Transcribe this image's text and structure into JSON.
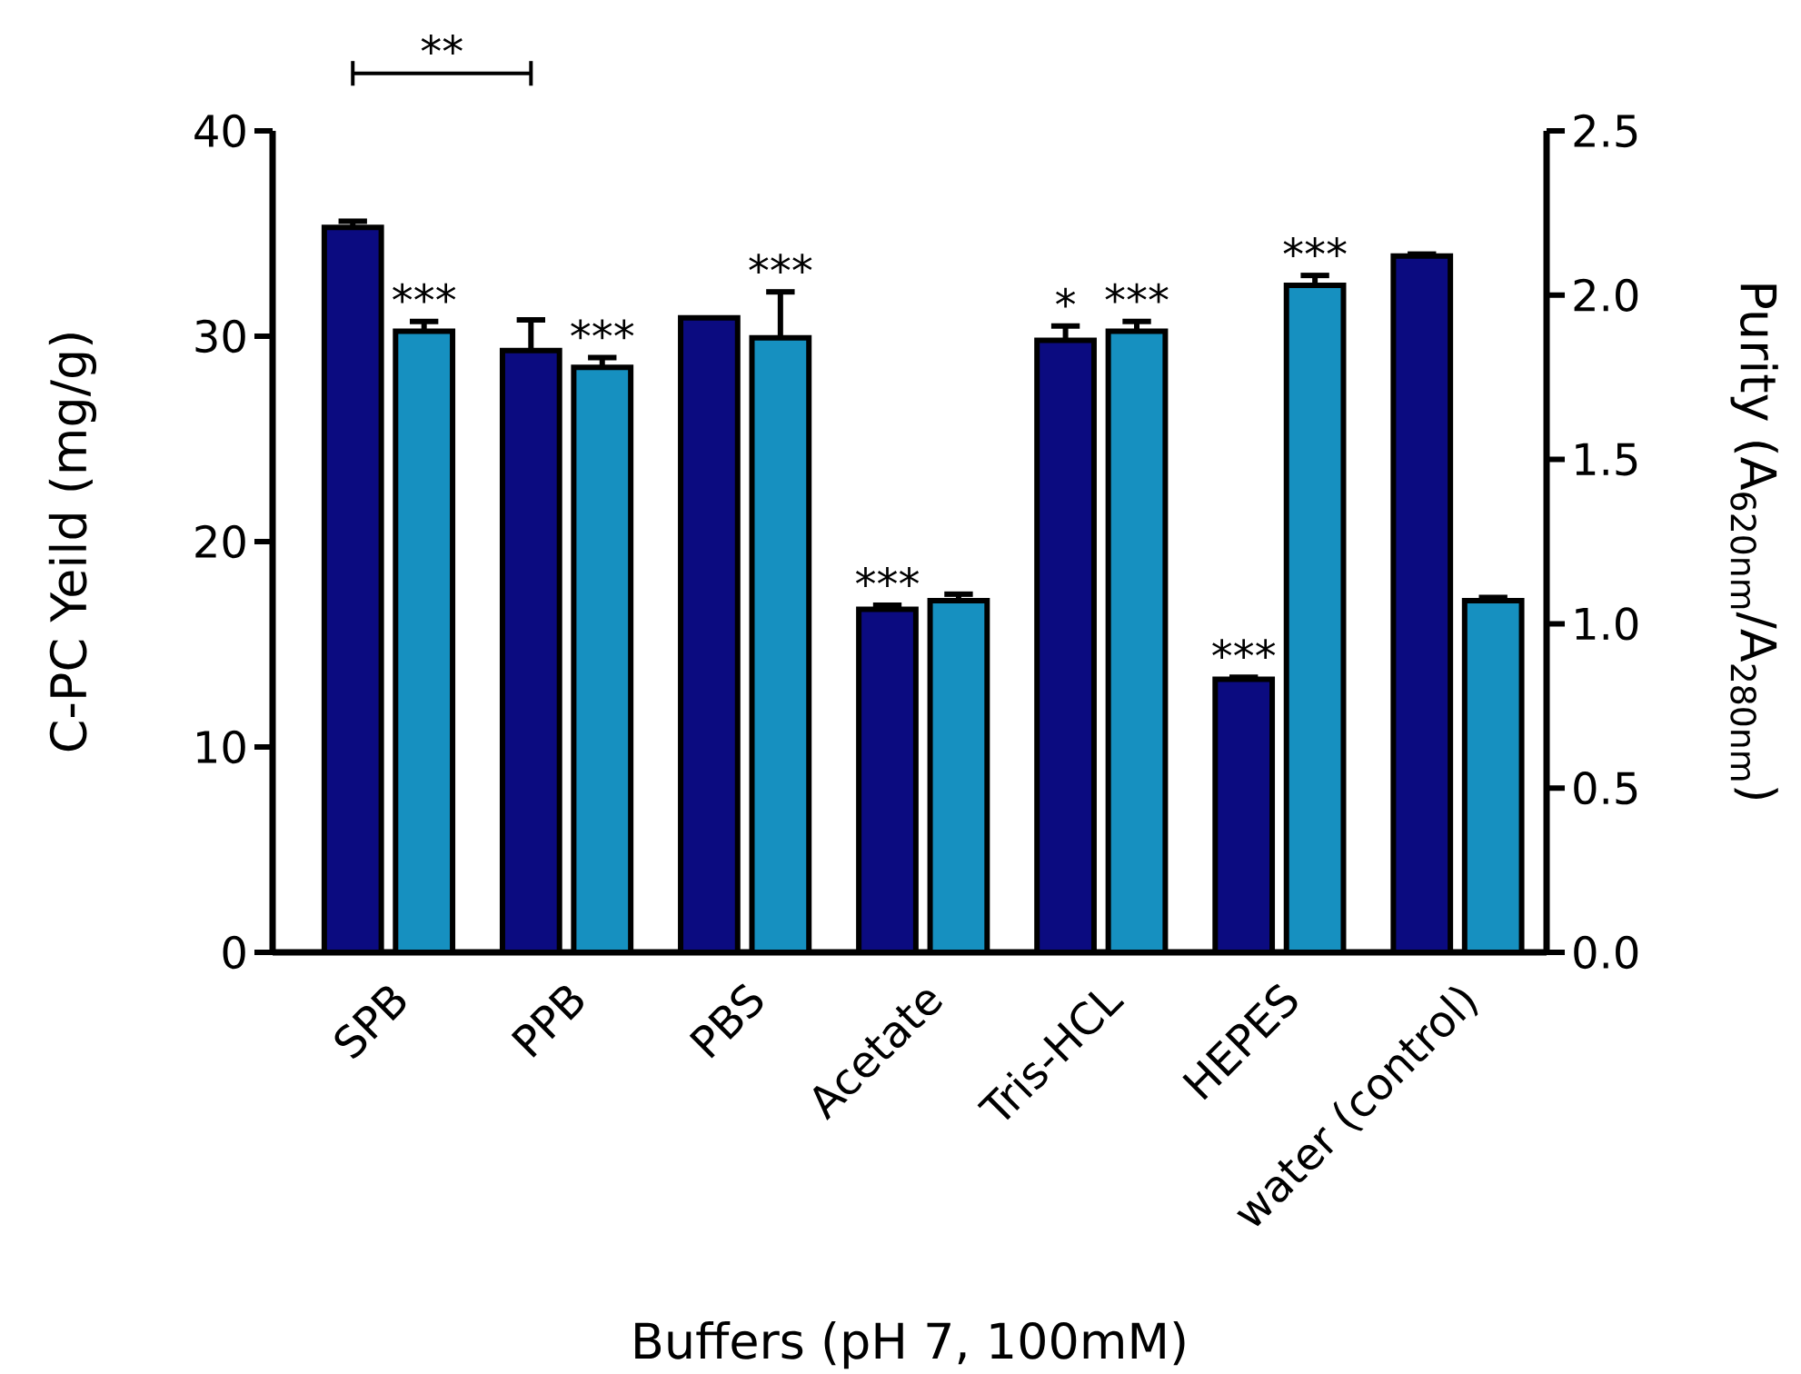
{
  "chart_data": {
    "type": "bar",
    "categories": [
      "SPB",
      "PPB",
      "PBS",
      "Acetate",
      "Tris-HCL",
      "HEPES",
      "water (control)"
    ],
    "series": [
      {
        "color": "#0b0b80",
        "values": [
          35.3,
          29.3,
          30.9,
          16.7,
          29.8,
          13.3,
          33.9
        ],
        "errors": [
          0.3,
          1.5,
          null,
          0.2,
          0.7,
          0.1,
          0.1
        ],
        "value_labels": [
          null,
          null,
          null,
          "***",
          "*",
          "***",
          null
        ]
      },
      {
        "color": "#1690c0",
        "axis": "y2",
        "values": [
          1.89,
          1.78,
          1.87,
          1.07,
          1.89,
          2.03,
          1.07
        ],
        "errors": [
          0.03,
          0.03,
          0.14,
          0.02,
          0.03,
          0.03,
          0.01
        ],
        "value_labels": [
          "***",
          "***",
          "***",
          null,
          "***",
          "***",
          null
        ]
      }
    ],
    "ylim": [
      0,
      40
    ],
    "yticks": [
      0,
      10,
      20,
      30,
      40
    ],
    "y2lim": [
      0,
      2.5
    ],
    "y2ticks": [
      {
        "value": 0,
        "label": "0.0"
      },
      0.5,
      {
        "value": 1,
        "label": "1.0"
      },
      1.5,
      {
        "value": 2,
        "label": "2.0"
      },
      2.5
    ],
    "xlabel": "Buffers (pH 7, 100mM)",
    "ylabel": "C-PC Yeild (mg/g)",
    "y2label": "Purity (A$_{620nm}$/A$_{280nm}$)",
    "annotations": [
      "**"
    ]
  }
}
